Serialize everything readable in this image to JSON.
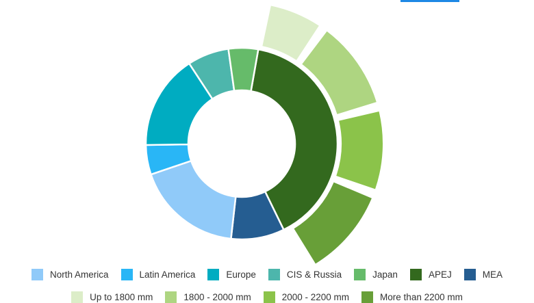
{
  "chart_data": {
    "type": "pie",
    "variant": "donut with exploded outer ring breaking down APEJ",
    "title": "",
    "inner_ring": {
      "categories": [
        "APEJ",
        "MEA",
        "North America",
        "Latin America",
        "Europe",
        "CIS & Russia",
        "Japan"
      ],
      "values": [
        40,
        9,
        18,
        5,
        16,
        7,
        5
      ],
      "colors": [
        "#33691e",
        "#255d91",
        "#90caf9",
        "#29b6f6",
        "#00acc1",
        "#4db6ac",
        "#66bb6a"
      ]
    },
    "outer_ring": {
      "categories": [
        "Up to 1800 mm",
        "1800 - 2000 mm",
        "2000 - 2200 mm",
        "More than 2200 mm"
      ],
      "values": [
        7,
        11,
        10,
        11
      ],
      "colors": [
        "#dcedc8",
        "#aed581",
        "#8bc34a",
        "#689f38"
      ]
    },
    "legend_position": "bottom"
  },
  "legend": {
    "row1": [
      {
        "label": "North America",
        "color": "#90caf9"
      },
      {
        "label": "Latin America",
        "color": "#29b6f6"
      },
      {
        "label": "Europe",
        "color": "#00acc1"
      },
      {
        "label": "CIS & Russia",
        "color": "#4db6ac"
      },
      {
        "label": "Japan",
        "color": "#66bb6a"
      },
      {
        "label": "APEJ",
        "color": "#33691e"
      },
      {
        "label": "MEA",
        "color": "#255d91"
      }
    ],
    "row2": [
      {
        "label": "Up to 1800 mm",
        "color": "#dcedc8"
      },
      {
        "label": "1800 - 2000 mm",
        "color": "#aed581"
      },
      {
        "label": "2000 - 2200 mm",
        "color": "#8bc34a"
      },
      {
        "label": "More than 2200 mm",
        "color": "#689f38"
      }
    ]
  }
}
